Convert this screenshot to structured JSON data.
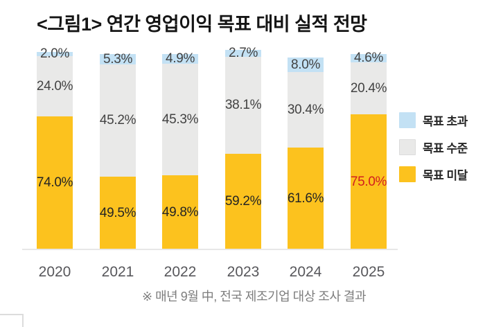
{
  "title": "<그림1> 연간 영업이익 목표 대비 실적 전망",
  "footnote": "※ 매년 9월 中, 전국 제조기업 대상 조사 결과",
  "legend": {
    "items": [
      {
        "label": "목표 초과",
        "color": "#c3e1f4"
      },
      {
        "label": "목표 수준",
        "color": "#e9e9e8"
      },
      {
        "label": "목표 미달",
        "color": "#fcc21e"
      }
    ]
  },
  "chart_data": {
    "type": "bar",
    "subtype": "stacked-100-percent",
    "title": "<그림1> 연간 영업이익 목표 대비 실적 전망",
    "categories": [
      "2020",
      "2021",
      "2022",
      "2023",
      "2024",
      "2025"
    ],
    "series": [
      {
        "name": "목표 초과",
        "color": "#c3e1f4",
        "values": [
          2.0,
          5.3,
          4.9,
          2.7,
          8.0,
          4.6
        ]
      },
      {
        "name": "목표 수준",
        "color": "#e9e9e8",
        "values": [
          24.0,
          45.2,
          45.3,
          38.1,
          30.4,
          20.4
        ]
      },
      {
        "name": "목표 미달",
        "color": "#fcc21e",
        "values": [
          74.0,
          49.5,
          49.8,
          59.2,
          61.6,
          75.0
        ]
      }
    ],
    "label_format": "one-decimal-percent",
    "highlight": {
      "category": "2025",
      "series": "목표 미달",
      "label_color": "#d21e1e"
    },
    "legend_position": "right",
    "grid": false,
    "ylim": [
      0,
      100
    ]
  }
}
